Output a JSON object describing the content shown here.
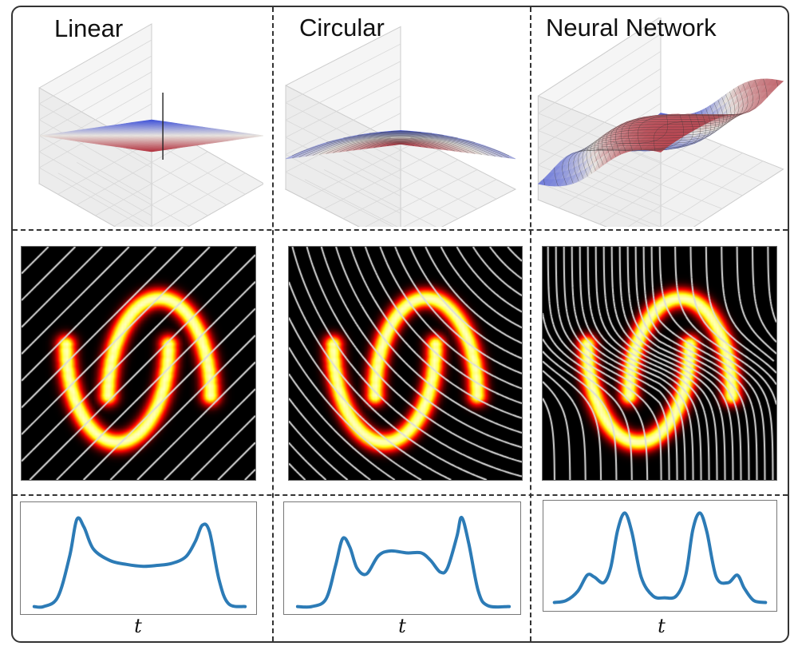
{
  "columns": [
    {
      "title": "Linear",
      "axis_label": "t",
      "projection": "linear"
    },
    {
      "title": "Circular",
      "axis_label": "t",
      "projection": "circular"
    },
    {
      "title": "Neural Network",
      "axis_label": "t",
      "projection": "neural-network"
    }
  ],
  "colors": {
    "surface_high": "#b2323f",
    "surface_mid": "#e6e2de",
    "surface_low": "#3c4fd8",
    "density_line": "#2c7bb6",
    "contour_line": "#dcdcdc",
    "heatmap_bg": "#000000"
  }
}
